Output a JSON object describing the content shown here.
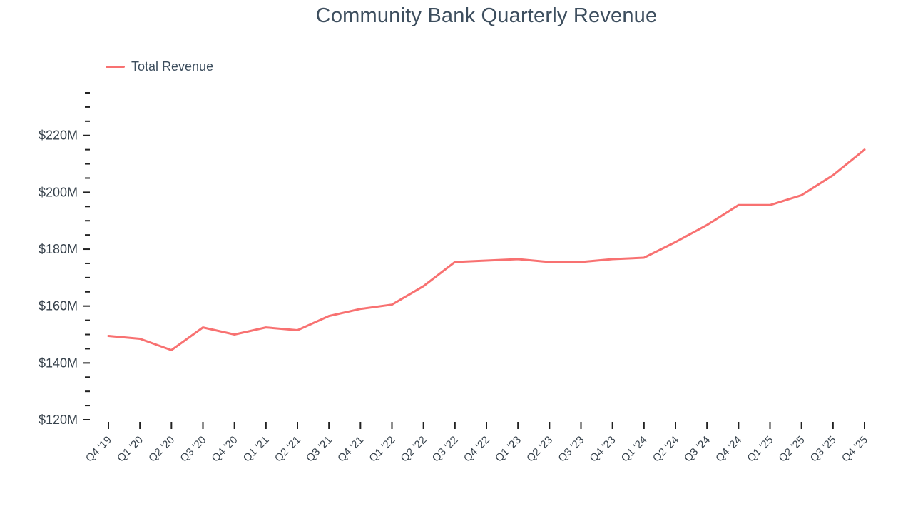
{
  "page": {
    "title": "Community Bank Quarterly Revenue"
  },
  "legend": {
    "label": "Total Revenue"
  },
  "colors": {
    "line": "#f87171",
    "title": "#3d4e5e",
    "axis_label": "#37424c",
    "tick": "#222222"
  },
  "chart_data": {
    "type": "line",
    "title": "Community Bank Quarterly Revenue",
    "categories": [
      "Q4 '19",
      "Q1 '20",
      "Q2 '20",
      "Q3 '20",
      "Q4 '20",
      "Q1 '21",
      "Q2 '21",
      "Q3 '21",
      "Q4 '21",
      "Q1 '22",
      "Q2 '22",
      "Q3 '22",
      "Q4 '22",
      "Q1 '23",
      "Q2 '23",
      "Q3 '23",
      "Q4 '23",
      "Q1 '24",
      "Q2 '24",
      "Q3 '24",
      "Q4 '24",
      "Q1 '25",
      "Q2 '25",
      "Q3 '25",
      "Q4 '25"
    ],
    "series": [
      {
        "name": "Total Revenue",
        "values": [
          149.5,
          148.5,
          144.5,
          152.5,
          150,
          152.5,
          151.5,
          156.5,
          159,
          160.5,
          167,
          175.5,
          176,
          176.5,
          175.5,
          175.5,
          176.5,
          177,
          182.5,
          188.5,
          195.5,
          195.5,
          199,
          206,
          215
        ]
      }
    ],
    "xlabel": "",
    "ylabel": "",
    "ylim": [
      120,
      235
    ],
    "y_major_step": 20,
    "y_minor_step": 5,
    "y_label_prefix": "$",
    "y_label_suffix": "M",
    "grid": false,
    "legend_position": "top-left"
  }
}
